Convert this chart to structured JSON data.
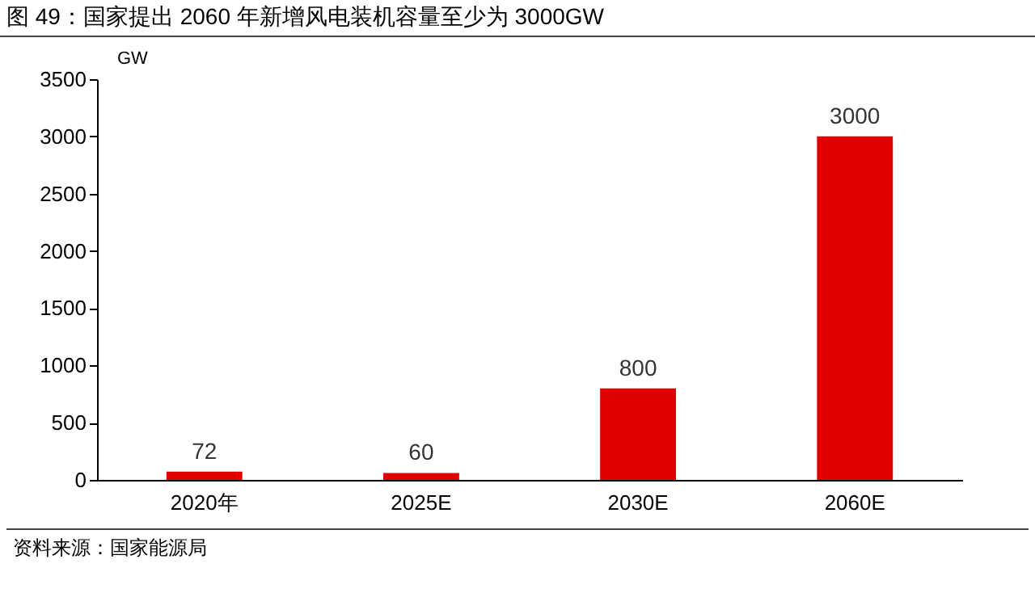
{
  "chart_data": {
    "type": "bar",
    "title": "图 49：国家提出 2060 年新增风电装机容量至少为 3000GW",
    "ylabel": "GW",
    "categories": [
      "2020年",
      "2025E",
      "2030E",
      "2060E"
    ],
    "values": [
      72,
      60,
      800,
      3000
    ],
    "color": "#e00000",
    "ylim": [
      0,
      3500
    ],
    "yticks": [
      0,
      500,
      1000,
      1500,
      2000,
      2500,
      3000,
      3500
    ],
    "data_labels": true,
    "annotations": [
      "资料来源：国家能源局"
    ]
  }
}
